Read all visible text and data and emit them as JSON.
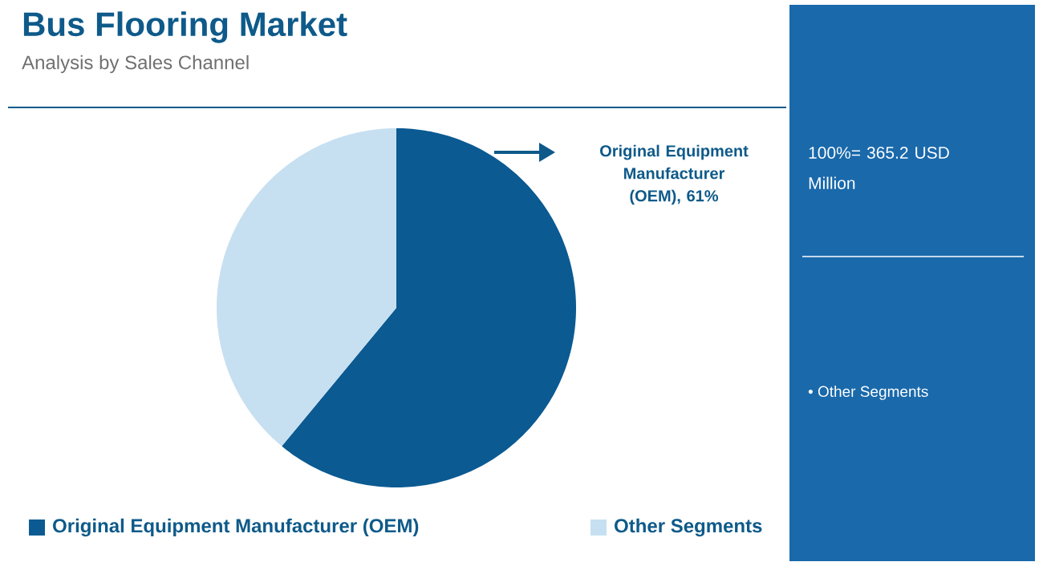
{
  "chart_data": {
    "type": "pie",
    "title": "Bus Flooring Market",
    "subtitle": "Analysis by Sales Channel",
    "categories": [
      "Original Equipment Manufacturer (OEM)",
      "Other Segments"
    ],
    "values": [
      61,
      39
    ],
    "colors": [
      "#0b5a92",
      "#c6e0f1"
    ],
    "legend": "bottom",
    "annotations": [
      "Original Equipment Manufacturer (OEM), 61%",
      "100%= 365.2 USD Million",
      "• Other Segments"
    ]
  }
}
